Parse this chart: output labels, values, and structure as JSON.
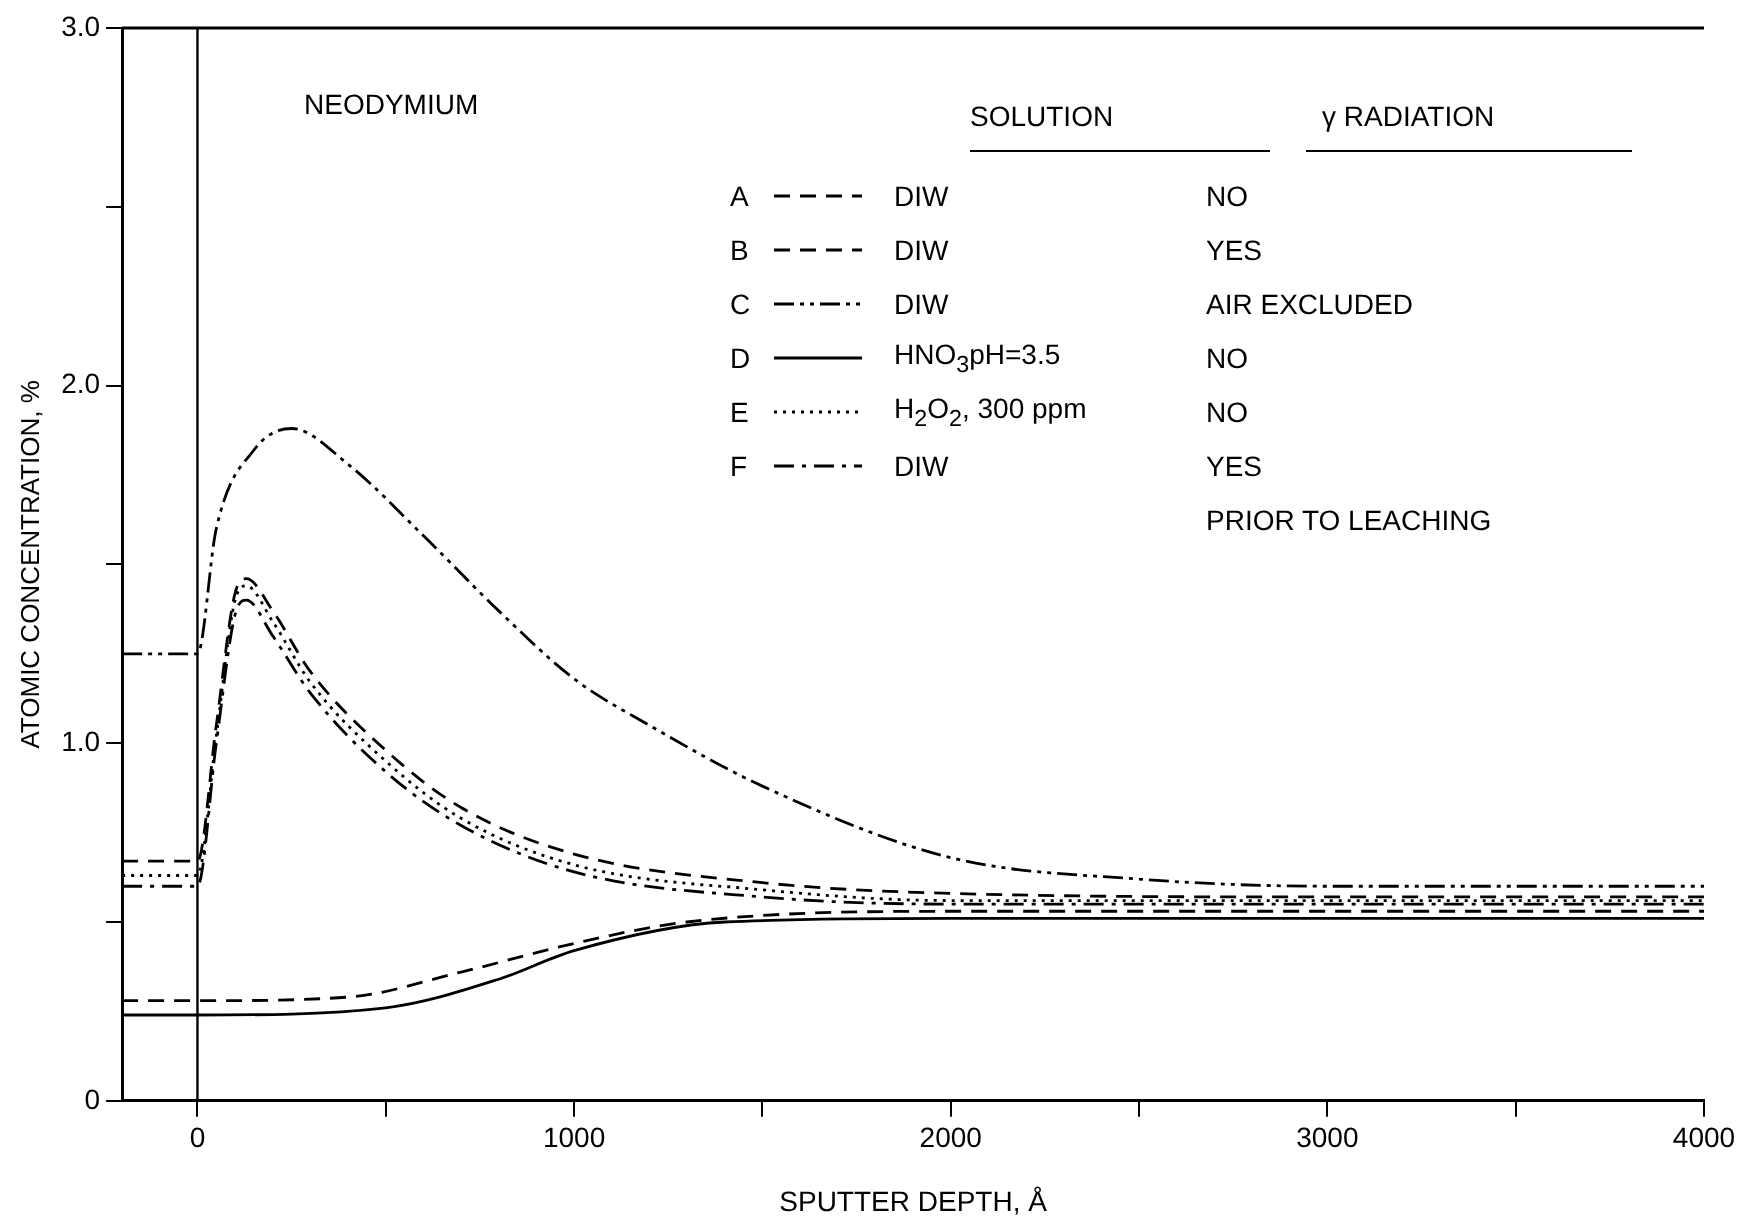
{
  "chart_data": {
    "type": "line",
    "xlabel": "SPUTTER DEPTH, Å",
    "ylabel": "ATOMIC CONCENTRATION, %",
    "xlim": [
      -200,
      4000
    ],
    "xticks": [
      0,
      {
        "value": 500,
        "label": null
      },
      1000,
      {
        "value": 1500,
        "label": null
      },
      2000,
      {
        "value": 2500,
        "label": null
      },
      3000,
      {
        "value": 3500,
        "label": null
      },
      4000
    ],
    "ylim": [
      0,
      3
    ],
    "yticks": [
      0,
      {
        "value": 0.5,
        "label": null
      },
      {
        "value": 1,
        "label": "1.0"
      },
      {
        "value": 1.5,
        "label": null
      },
      {
        "value": 2,
        "label": "2.0"
      },
      {
        "value": 2.5,
        "label": null
      },
      {
        "value": 3,
        "label": "3.0"
      }
    ],
    "grid": false,
    "marker": "none",
    "legend": "top left",
    "ref_lines": [
      {
        "axis": "x",
        "value": 0,
        "color": "#000000"
      }
    ],
    "annotations": [
      "NEODYMIUM",
      "SOLUTION",
      "γ RADIATION",
      "DIW",
      "NO",
      "DIW",
      "YES",
      "DIW",
      "AIR EXCLUDED",
      "HNO$_{3}$pH=3.5",
      "NO",
      "H$_{2}$O$_{2}$, 300 ppm",
      "NO",
      "DIW",
      "YES",
      "PRIOR TO LEACHING"
    ],
    "series": [
      {
        "name": "A",
        "color": "#000000",
        "line_style": "dashed",
        "x": [
          -200,
          0,
          50,
          100,
          130,
          200,
          300,
          500,
          700,
          1000,
          1500,
          2000,
          3000,
          4000
        ],
        "values": [
          0.67,
          0.67,
          1.05,
          1.42,
          1.46,
          1.37,
          1.2,
          0.98,
          0.82,
          0.69,
          0.61,
          0.58,
          0.57,
          0.57
        ]
      },
      {
        "name": "B",
        "color": "#000000",
        "line_style": "dashed",
        "x": [
          -200,
          0,
          400,
          700,
          1000,
          1300,
          2000,
          4000
        ],
        "values": [
          0.28,
          0.28,
          0.29,
          0.36,
          0.44,
          0.5,
          0.53,
          0.53
        ]
      },
      {
        "name": "C",
        "color": "#000000",
        "line_style": "dashdotdot",
        "x": [
          -200,
          0,
          50,
          150,
          250,
          400,
          600,
          800,
          1000,
          1200,
          1500,
          2000,
          2500,
          3000,
          4000
        ],
        "values": [
          1.25,
          1.25,
          1.6,
          1.82,
          1.88,
          1.78,
          1.58,
          1.37,
          1.18,
          1.05,
          0.88,
          0.68,
          0.62,
          0.6,
          0.6
        ]
      },
      {
        "name": "D",
        "color": "#000000",
        "line_style": "solid",
        "x": [
          -200,
          0,
          500,
          800,
          1000,
          1400,
          2000,
          4000
        ],
        "values": [
          0.24,
          0.24,
          0.26,
          0.34,
          0.42,
          0.5,
          0.51,
          0.51
        ]
      },
      {
        "name": "E",
        "color": "#000000",
        "line_style": "dotted",
        "x": [
          -200,
          0,
          50,
          100,
          130,
          200,
          300,
          500,
          700,
          1000,
          1500,
          2000,
          3000,
          4000
        ],
        "values": [
          0.63,
          0.63,
          1.02,
          1.4,
          1.44,
          1.34,
          1.17,
          0.95,
          0.79,
          0.66,
          0.59,
          0.56,
          0.56,
          0.56
        ]
      },
      {
        "name": "F",
        "color": "#000000",
        "line_style": "dashdot",
        "x": [
          -200,
          0,
          50,
          100,
          130,
          200,
          300,
          500,
          700,
          1000,
          1500,
          2000,
          3000,
          4000
        ],
        "values": [
          0.6,
          0.6,
          1.0,
          1.36,
          1.4,
          1.3,
          1.14,
          0.92,
          0.77,
          0.64,
          0.57,
          0.55,
          0.55,
          0.55
        ]
      }
    ]
  }
}
